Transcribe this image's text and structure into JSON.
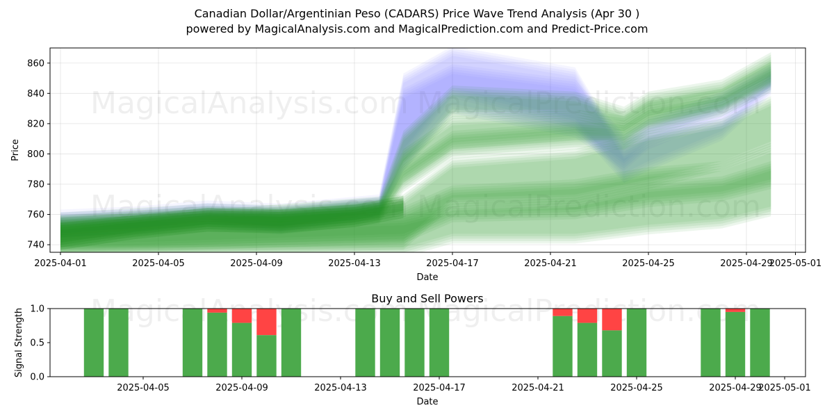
{
  "figure": {
    "title": "Canadian Dollar/Argentinian Peso (CADARS) Price Wave Trend Analysis (Apr 30 )",
    "subtitle": "powered by MagicalAnalysis.com and MagicalPrediction.com and Predict-Price.com",
    "watermarks": [
      "MagicalAnalysis.com",
      "MagicalPrediction.com"
    ]
  },
  "colors": {
    "green_band": "#2ca02c",
    "dark_green": "#1e8c1e",
    "blue_band": "#6b6bff",
    "buy": "#4caa4c",
    "sell": "#ff4444"
  },
  "chart_data": [
    {
      "type": "area",
      "title": "",
      "xlabel": "Date",
      "ylabel": "Price",
      "xlim": [
        "2025-04-01",
        "2025-05-01"
      ],
      "ylim": [
        735,
        870
      ],
      "xticks": [
        "2025-04-01",
        "2025-04-05",
        "2025-04-09",
        "2025-04-13",
        "2025-04-17",
        "2025-04-21",
        "2025-04-25",
        "2025-04-29",
        "2025-05-01"
      ],
      "yticks": [
        740,
        760,
        780,
        800,
        820,
        840,
        860
      ],
      "grid": true,
      "series": [
        {
          "color": "blue",
          "x": [
            "2025-04-01",
            "2025-04-04",
            "2025-04-07",
            "2025-04-10",
            "2025-04-14",
            "2025-04-15",
            "2025-04-17",
            "2025-04-22",
            "2025-04-24",
            "2025-04-25",
            "2025-04-28",
            "2025-04-30"
          ],
          "upper": [
            760,
            762,
            766,
            764,
            770,
            850,
            868,
            854,
            800,
            808,
            822,
            850
          ],
          "lower": [
            748,
            752,
            757,
            752,
            762,
            800,
            840,
            820,
            784,
            792,
            812,
            842
          ]
        },
        {
          "color": "blue",
          "x": [
            "2025-04-01",
            "2025-04-04",
            "2025-04-07",
            "2025-04-10",
            "2025-04-14",
            "2025-04-15",
            "2025-04-17",
            "2025-04-22",
            "2025-04-24",
            "2025-04-25",
            "2025-04-28",
            "2025-04-30"
          ],
          "upper": [
            758,
            760,
            764,
            762,
            768,
            840,
            856,
            846,
            810,
            820,
            838,
            856
          ],
          "lower": [
            746,
            750,
            754,
            750,
            760,
            792,
            830,
            814,
            792,
            806,
            826,
            846
          ]
        },
        {
          "color": "green",
          "x": [
            "2025-04-01",
            "2025-04-04",
            "2025-04-07",
            "2025-04-10",
            "2025-04-14",
            "2025-04-15",
            "2025-04-17",
            "2025-04-22",
            "2025-04-24",
            "2025-04-25",
            "2025-04-28",
            "2025-04-30"
          ],
          "upper": [
            758,
            761,
            764,
            763,
            768,
            812,
            842,
            838,
            828,
            838,
            846,
            864
          ],
          "lower": [
            748,
            751,
            755,
            753,
            760,
            792,
            826,
            826,
            818,
            828,
            838,
            854
          ]
        },
        {
          "color": "green",
          "x": [
            "2025-04-01",
            "2025-04-04",
            "2025-04-07",
            "2025-04-10",
            "2025-04-14",
            "2025-04-15",
            "2025-04-17",
            "2025-04-22",
            "2025-04-24",
            "2025-04-25",
            "2025-04-28",
            "2025-04-30"
          ],
          "upper": [
            756,
            759,
            762,
            761,
            766,
            800,
            822,
            826,
            822,
            832,
            840,
            858
          ],
          "lower": [
            746,
            749,
            753,
            751,
            758,
            784,
            806,
            812,
            812,
            822,
            832,
            848
          ]
        },
        {
          "color": "green",
          "x": [
            "2025-04-01",
            "2025-04-04",
            "2025-04-07",
            "2025-04-10",
            "2025-04-14",
            "2025-04-15",
            "2025-04-17",
            "2025-04-22",
            "2025-04-24",
            "2025-04-25",
            "2025-04-28",
            "2025-04-30"
          ],
          "upper": [
            755,
            758,
            761,
            760,
            765,
            790,
            812,
            818,
            816,
            826,
            836,
            854
          ],
          "lower": [
            745,
            748,
            752,
            750,
            757,
            778,
            800,
            806,
            806,
            816,
            828,
            844
          ]
        },
        {
          "color": "green",
          "x": [
            "2025-04-01",
            "2025-04-15",
            "2025-04-17",
            "2025-04-22",
            "2025-04-25",
            "2025-04-28",
            "2025-04-30"
          ],
          "upper": [
            752,
            770,
            794,
            800,
            812,
            820,
            835
          ],
          "lower": [
            735,
            740,
            768,
            770,
            780,
            792,
            805
          ]
        },
        {
          "color": "green",
          "x": [
            "2025-04-01",
            "2025-04-15",
            "2025-04-17",
            "2025-04-22",
            "2025-04-25",
            "2025-04-28",
            "2025-04-30"
          ],
          "upper": [
            756,
            762,
            776,
            780,
            788,
            792,
            804
          ],
          "lower": [
            737,
            744,
            758,
            760,
            768,
            772,
            780
          ]
        },
        {
          "color": "green",
          "x": [
            "2025-04-01",
            "2025-04-15",
            "2025-04-17",
            "2025-04-22",
            "2025-04-25",
            "2025-04-28",
            "2025-04-30"
          ],
          "upper": [
            750,
            756,
            764,
            768,
            778,
            782,
            792
          ],
          "lower": [
            735,
            735,
            744,
            744,
            750,
            754,
            762
          ]
        },
        {
          "color": "darkgreen",
          "x": [
            "2025-04-01",
            "2025-04-04",
            "2025-04-07",
            "2025-04-10",
            "2025-04-13",
            "2025-04-15"
          ],
          "upper": [
            752,
            757,
            762,
            761,
            764,
            770
          ],
          "lower": [
            739,
            746,
            751,
            750,
            754,
            760
          ]
        }
      ]
    },
    {
      "type": "bar",
      "title": "Buy and Sell Powers",
      "xlabel": "Date",
      "ylabel": "Signal Strength",
      "xlim": [
        "2025-04-01",
        "2025-05-01"
      ],
      "ylim": [
        0,
        1
      ],
      "xticks": [
        "2025-04-05",
        "2025-04-09",
        "2025-04-13",
        "2025-04-17",
        "2025-04-21",
        "2025-04-25",
        "2025-04-29",
        "2025-05-01"
      ],
      "yticks": [
        "0.0",
        "0.5",
        "1.0"
      ],
      "series": [
        {
          "name": "",
          "x": [
            "2025-04-03",
            "2025-04-04",
            "2025-04-07",
            "2025-04-08",
            "2025-04-09",
            "2025-04-10",
            "2025-04-11",
            "2025-04-14",
            "2025-04-15",
            "2025-04-16",
            "2025-04-17",
            "2025-04-22",
            "2025-04-23",
            "2025-04-24",
            "2025-04-25",
            "2025-04-28",
            "2025-04-29",
            "2025-04-30"
          ],
          "buy": [
            1.0,
            1.0,
            1.0,
            0.94,
            0.79,
            0.61,
            1.0,
            1.0,
            1.0,
            1.0,
            1.0,
            0.89,
            0.79,
            0.68,
            1.0,
            1.0,
            0.95,
            1.0
          ]
        }
      ]
    }
  ]
}
